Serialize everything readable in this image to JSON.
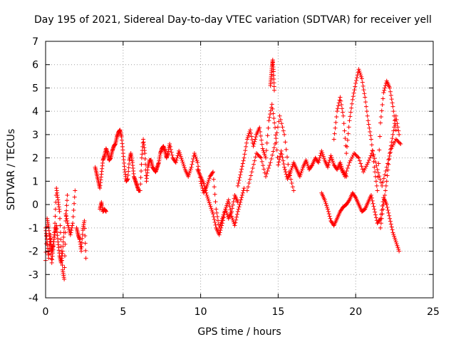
{
  "chart_data": {
    "type": "scatter",
    "title": "Day 195 of 2021, Sidereal Day-to-day VTEC variation (SDTVAR) for receiver yell",
    "xlabel": "GPS time / hours",
    "ylabel": "SDTVAR / TECUs",
    "xlim": [
      0,
      25
    ],
    "ylim": [
      -4,
      7
    ],
    "xticks": [
      0,
      5,
      10,
      15,
      20,
      25
    ],
    "yticks": [
      -4,
      -3,
      -2,
      -1,
      0,
      1,
      2,
      3,
      4,
      5,
      6,
      7
    ],
    "grid": true,
    "marker": "+",
    "series": [
      {
        "name": "SDTVAR",
        "color": "#ff0000",
        "segments": [
          {
            "x": [
              0.0,
              0.1,
              0.2,
              0.3,
              0.4,
              0.5,
              0.6,
              0.7,
              0.8,
              0.9,
              1.0,
              1.1,
              1.2,
              1.3,
              1.4
            ],
            "y": [
              -2.4,
              -0.6,
              -1.0,
              -1.6,
              -2.5,
              -1.8,
              -0.8,
              0.7,
              0.2,
              -0.3,
              -1.8,
              -2.8,
              -3.2,
              -0.7,
              0.4
            ]
          },
          {
            "x": [
              0.0,
              0.1,
              0.2,
              0.3,
              0.4,
              0.5,
              0.6,
              0.7,
              0.8,
              0.9,
              1.0,
              1.1,
              1.2
            ],
            "y": [
              -1.0,
              -1.6,
              -2.3,
              -1.3,
              -2.0,
              -1.7,
              -1.2,
              -0.9,
              -1.6,
              -2.2,
              -2.5,
              -2.0,
              -1.0
            ]
          },
          {
            "x": [
              1.3,
              1.45,
              1.6,
              1.75,
              1.9
            ],
            "y": [
              -0.4,
              -0.9,
              -1.3,
              -0.8,
              0.6
            ]
          },
          {
            "x": [
              2.0,
              2.1,
              2.2,
              2.3,
              2.4,
              2.5,
              2.6
            ],
            "y": [
              -1.0,
              -1.3,
              -1.5,
              -2.0,
              -1.1,
              -0.7,
              -2.3
            ]
          },
          {
            "x": [
              3.2,
              3.3,
              3.4,
              3.5,
              3.6,
              3.7,
              3.8,
              3.9,
              4.0,
              4.1,
              4.2,
              4.3,
              4.4,
              4.5,
              4.6,
              4.7,
              4.8,
              4.9,
              5.0,
              5.1,
              5.2,
              5.3,
              5.4,
              5.5,
              5.6,
              5.7,
              5.8,
              5.9,
              6.0
            ],
            "y": [
              1.6,
              1.3,
              1.0,
              0.7,
              1.3,
              1.9,
              2.1,
              2.4,
              2.2,
              1.9,
              2.0,
              2.3,
              2.5,
              2.6,
              2.9,
              3.1,
              3.2,
              2.9,
              2.2,
              1.5,
              1.0,
              1.1,
              1.9,
              2.2,
              1.8,
              1.2,
              1.0,
              0.8,
              0.6
            ]
          },
          {
            "x": [
              3.5,
              3.6,
              3.7,
              3.8,
              3.9
            ],
            "y": [
              -0.2,
              0.1,
              -0.3,
              -0.2,
              -0.3
            ]
          },
          {
            "x": [
              6.0,
              6.1,
              6.2,
              6.3,
              6.4,
              6.5,
              6.6,
              6.7,
              6.8,
              6.9,
              7.0,
              7.1,
              7.2,
              7.3,
              7.4,
              7.5,
              7.6,
              7.7,
              7.8,
              7.9,
              8.0,
              8.2,
              8.4,
              8.6,
              8.8,
              9.0,
              9.2,
              9.4,
              9.6,
              9.8,
              10.0,
              10.2,
              10.4,
              10.6,
              10.8,
              11.0,
              11.2,
              11.4,
              11.6,
              11.8,
              12.0,
              12.2,
              12.4,
              12.6,
              12.8
            ],
            "y": [
              0.6,
              0.6,
              2.0,
              2.8,
              2.2,
              1.0,
              1.6,
              1.9,
              1.9,
              1.6,
              1.5,
              1.4,
              1.6,
              1.8,
              2.2,
              2.4,
              2.5,
              2.3,
              2.0,
              2.2,
              2.6,
              2.0,
              1.8,
              2.3,
              1.9,
              1.5,
              1.2,
              1.6,
              2.2,
              1.8,
              1.0,
              0.5,
              0.8,
              1.2,
              1.4,
              -0.2,
              -1.0,
              -0.6,
              -0.2,
              0.2,
              -0.5,
              -0.9,
              -0.3,
              0.2,
              0.7
            ]
          },
          {
            "x": [
              9.8,
              10.0,
              10.2,
              10.4,
              10.6,
              10.8,
              11.0,
              11.2,
              11.4,
              11.6,
              11.8,
              12.0,
              12.2,
              12.4
            ],
            "y": [
              1.5,
              1.2,
              0.9,
              0.4,
              0.0,
              -0.4,
              -1.0,
              -1.3,
              -0.8,
              -0.2,
              -0.6,
              -0.3,
              0.4,
              0.1
            ]
          },
          {
            "x": [
              12.4,
              12.6,
              12.8,
              13.0,
              13.2,
              13.4,
              13.6,
              13.8,
              14.0,
              14.2,
              14.4,
              14.6,
              14.8,
              15.0,
              15.2,
              15.4,
              15.6,
              15.8,
              16.0,
              16.2,
              16.4,
              16.6,
              16.8,
              17.0,
              17.2,
              17.4,
              17.6,
              17.8,
              18.0,
              18.2,
              18.4,
              18.6,
              18.8,
              19.0,
              19.2,
              19.4
            ],
            "y": [
              0.8,
              1.4,
              2.0,
              2.8,
              3.2,
              2.5,
              3.0,
              3.3,
              2.4,
              2.0,
              3.6,
              4.3,
              3.3,
              1.7,
              2.3,
              1.6,
              1.1,
              1.4,
              1.8,
              1.5,
              1.2,
              1.6,
              1.9,
              1.5,
              1.7,
              2.0,
              1.8,
              2.3,
              1.9,
              1.6,
              2.1,
              1.7,
              1.5,
              1.8,
              1.4,
              1.2
            ]
          },
          {
            "x": [
              13.0,
              13.3,
              13.6,
              13.9,
              14.2,
              14.5,
              14.8,
              15.1,
              15.4,
              15.7,
              16.0
            ],
            "y": [
              0.6,
              1.4,
              2.2,
              2.0,
              1.2,
              1.8,
              2.6,
              3.8,
              3.0,
              1.4,
              0.6
            ]
          },
          {
            "x": [
              14.5,
              14.55,
              14.6,
              14.65,
              14.7,
              14.75
            ],
            "y": [
              5.1,
              5.5,
              5.9,
              6.2,
              5.7,
              4.9
            ]
          },
          {
            "x": [
              17.8,
              18.0,
              18.2,
              18.4,
              18.6,
              18.8,
              19.0,
              19.2,
              19.4,
              19.6,
              19.8,
              20.0,
              20.2,
              20.4,
              20.6,
              20.8,
              21.0,
              21.2,
              21.4,
              21.6,
              21.8,
              22.0,
              22.2,
              22.4,
              22.6,
              22.8
            ],
            "y": [
              0.5,
              0.2,
              -0.2,
              -0.7,
              -0.9,
              -0.6,
              -0.3,
              -0.1,
              0.0,
              0.2,
              0.5,
              0.3,
              0.0,
              -0.3,
              -0.2,
              0.1,
              0.4,
              -0.2,
              -0.8,
              -0.6,
              0.3,
              0.0,
              -0.6,
              -1.2,
              -1.6,
              -2.0
            ]
          },
          {
            "x": [
              18.6,
              18.8,
              19.0,
              19.2,
              19.4,
              19.6,
              19.8,
              20.0,
              20.2,
              20.4,
              20.6,
              20.8,
              21.0,
              21.2,
              21.4,
              21.6,
              21.8,
              22.0,
              22.2,
              22.4,
              22.6
            ],
            "y": [
              2.8,
              4.0,
              4.6,
              3.8,
              2.2,
              3.6,
              4.5,
              5.2,
              5.8,
              5.4,
              4.6,
              3.6,
              2.8,
              1.6,
              0.6,
              3.5,
              4.8,
              5.3,
              5.0,
              4.2,
              3.2
            ]
          },
          {
            "x": [
              19.0,
              19.3,
              19.6,
              19.9,
              20.2,
              20.5,
              20.8,
              21.1,
              21.4,
              21.7,
              22.0,
              22.3,
              22.6,
              22.9
            ],
            "y": [
              1.6,
              1.2,
              1.8,
              2.2,
              2.0,
              1.4,
              1.8,
              2.3,
              1.5,
              0.8,
              1.6,
              2.4,
              2.8,
              2.6
            ]
          },
          {
            "x": [
              21.6,
              21.8,
              22.0,
              22.2,
              22.4,
              22.6,
              22.8
            ],
            "y": [
              -1.0,
              0.0,
              1.0,
              2.2,
              3.0,
              3.8,
              3.0
            ]
          }
        ]
      }
    ]
  }
}
